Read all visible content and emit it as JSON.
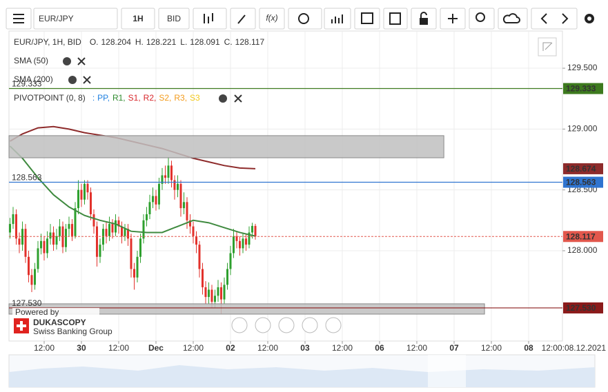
{
  "toolbar": {
    "symbol": "EUR/JPY",
    "period": "1H",
    "side": "BID",
    "fx": "f(x)"
  },
  "chart_data": {
    "type": "candlestick",
    "title": "EUR/JPY, 1H, BID",
    "ohlc_labels": [
      "O.",
      "H.",
      "L.",
      "C."
    ],
    "x": [
      1,
      2,
      3,
      4,
      5,
      6,
      7,
      8,
      9,
      10,
      11,
      12,
      13,
      14,
      15,
      16,
      17,
      18,
      19,
      20,
      21,
      22,
      23,
      24,
      25,
      26,
      27,
      28,
      29,
      30,
      31,
      32,
      33,
      34,
      35,
      36,
      37,
      38,
      39,
      40,
      41,
      42,
      43,
      44,
      45,
      46,
      47,
      48,
      49,
      50,
      51,
      52,
      53,
      54,
      55,
      56,
      57,
      58,
      59,
      60,
      61,
      62,
      63,
      64,
      65,
      66,
      67,
      68,
      69,
      70,
      71,
      72,
      73,
      74,
      75,
      76,
      77,
      78,
      79,
      80
    ],
    "open": [
      128.15,
      128.22,
      128.3,
      128.1,
      128.05,
      128.18,
      127.95,
      127.8,
      127.72,
      127.85,
      128.02,
      128.08,
      127.98,
      128.1,
      128.15,
      128.05,
      128.12,
      128.2,
      128.03,
      128.18,
      128.22,
      128.12,
      128.35,
      128.5,
      128.42,
      128.55,
      128.48,
      128.3,
      128.2,
      127.95,
      128.05,
      128.18,
      128.12,
      128.22,
      128.15,
      128.25,
      128.2,
      128.12,
      128.18,
      128.1,
      127.85,
      127.78,
      127.95,
      128.1,
      128.25,
      128.3,
      128.4,
      128.45,
      128.38,
      128.55,
      128.62,
      128.6,
      128.7,
      128.58,
      128.5,
      128.55,
      128.35,
      128.4,
      128.25,
      128.2,
      128.12,
      128.05,
      127.85,
      127.7,
      127.62,
      127.68,
      127.58,
      127.63,
      127.7,
      127.6,
      127.72,
      127.85,
      127.98,
      128.12,
      128.08,
      128.02,
      128.1,
      128.05,
      128.15,
      128.204
    ],
    "high": [
      128.27,
      128.36,
      128.34,
      128.15,
      128.24,
      128.22,
      128.0,
      127.85,
      127.9,
      128.08,
      128.14,
      128.12,
      128.16,
      128.22,
      128.2,
      128.18,
      128.26,
      128.24,
      128.22,
      128.28,
      128.26,
      128.4,
      128.58,
      128.55,
      128.58,
      128.58,
      128.52,
      128.34,
      128.24,
      128.1,
      128.22,
      128.24,
      128.28,
      128.26,
      128.3,
      128.28,
      128.24,
      128.22,
      128.22,
      128.14,
      127.9,
      128.0,
      128.14,
      128.3,
      128.36,
      128.46,
      128.52,
      128.5,
      128.6,
      128.68,
      128.7,
      128.77,
      128.74,
      128.62,
      128.62,
      128.58,
      128.48,
      128.44,
      128.3,
      128.24,
      128.16,
      128.08,
      127.9,
      127.75,
      127.74,
      127.72,
      127.68,
      127.76,
      127.74,
      127.78,
      127.9,
      128.04,
      128.18,
      128.16,
      128.12,
      128.15,
      128.14,
      128.2,
      128.23,
      128.221
    ],
    "low": [
      128.1,
      128.18,
      128.05,
      127.98,
      128.0,
      127.9,
      127.74,
      127.66,
      127.68,
      127.82,
      127.97,
      127.92,
      127.94,
      128.05,
      128.0,
      128.01,
      128.08,
      127.98,
      127.99,
      128.12,
      128.08,
      128.1,
      128.3,
      128.36,
      128.38,
      128.42,
      128.25,
      128.14,
      127.87,
      127.9,
      128.0,
      128.06,
      128.08,
      128.1,
      128.12,
      128.14,
      128.06,
      128.08,
      128.04,
      127.78,
      127.68,
      127.74,
      127.9,
      128.06,
      128.2,
      128.26,
      128.35,
      128.33,
      128.34,
      128.5,
      128.55,
      128.55,
      128.52,
      128.42,
      128.44,
      128.28,
      128.3,
      128.18,
      128.14,
      128.06,
      127.98,
      127.78,
      127.64,
      127.56,
      127.56,
      127.53,
      127.53,
      127.58,
      127.48,
      127.56,
      127.68,
      127.8,
      127.94,
      128.02,
      127.96,
      127.98,
      128.0,
      128.02,
      128.1,
      128.091
    ],
    "close": [
      128.22,
      128.3,
      128.1,
      128.05,
      128.18,
      127.95,
      127.8,
      127.72,
      127.85,
      128.02,
      128.08,
      127.98,
      128.1,
      128.15,
      128.05,
      128.12,
      128.2,
      128.03,
      128.18,
      128.22,
      128.12,
      128.35,
      128.5,
      128.42,
      128.55,
      128.48,
      128.3,
      128.2,
      127.95,
      128.05,
      128.18,
      128.12,
      128.22,
      128.15,
      128.25,
      128.2,
      128.12,
      128.18,
      128.1,
      127.85,
      127.78,
      127.95,
      128.1,
      128.25,
      128.3,
      128.4,
      128.45,
      128.38,
      128.55,
      128.62,
      128.6,
      128.7,
      128.58,
      128.5,
      128.55,
      128.35,
      128.4,
      128.25,
      128.2,
      128.12,
      128.05,
      127.85,
      127.7,
      127.62,
      127.68,
      127.58,
      127.63,
      127.7,
      127.6,
      127.72,
      127.85,
      127.98,
      128.12,
      128.08,
      128.02,
      128.1,
      128.05,
      128.15,
      128.204,
      128.117
    ],
    "up_color": "#2ea02e",
    "down_color": "#e2312b",
    "current_color": "#e2574c",
    "series": [
      {
        "name": "SMA (50)",
        "color": "#3f8a3f",
        "x": [
          1,
          5,
          10,
          15,
          20,
          25,
          30,
          35,
          40,
          45,
          50,
          55,
          60,
          65,
          70,
          75,
          80
        ],
        "values": [
          128.86,
          128.76,
          128.6,
          128.46,
          128.36,
          128.29,
          128.25,
          128.22,
          128.16,
          128.15,
          128.15,
          128.2,
          128.25,
          128.23,
          128.19,
          128.15,
          128.12
        ]
      },
      {
        "name": "SMA (200)",
        "color": "#8e2b2b",
        "x": [
          1,
          5,
          10,
          15,
          20,
          25,
          30,
          35,
          40,
          45,
          50,
          55,
          60,
          65,
          70,
          75,
          80
        ],
        "values": [
          128.9,
          128.96,
          129.01,
          129.02,
          129.0,
          128.97,
          128.95,
          128.93,
          128.9,
          128.87,
          128.84,
          128.8,
          128.76,
          128.73,
          128.7,
          128.68,
          128.674
        ]
      }
    ],
    "pivot": {
      "name": "PIVOTPOINT (0, 8)",
      "prefix": ":",
      "items": [
        {
          "name": "PP,",
          "color": "#1e7fe0"
        },
        {
          "name": "R1,",
          "color": "#2e8b2e"
        },
        {
          "name": "S1,",
          "color": "#d8262b"
        },
        {
          "name": "R2,",
          "color": "#d8262b"
        },
        {
          "name": "S2,",
          "color": "#f39a1a"
        },
        {
          "name": "R3,",
          "color": "#f39a1a"
        },
        {
          "name": "S3",
          "color": "#f2c81a"
        }
      ]
    },
    "levels": [
      {
        "value": 129.333,
        "color": "#3d7a1e"
      },
      {
        "value": 128.563,
        "color": "#2f74d0"
      },
      {
        "value": 127.53,
        "label": "127.530",
        "color": "#8b1a1a"
      }
    ],
    "zones": [
      {
        "xlim": [
          0.67,
          140.7
        ],
        "ylim": [
          128.764,
          128.946
        ]
      },
      {
        "xlim": [
          0.67,
          153.8
        ],
        "ylim": [
          127.479,
          127.564
        ]
      }
    ],
    "xlim": [
      0.67,
      178.89
    ],
    "ylim": [
      127.258,
      129.806
    ],
    "yticks": [
      {
        "value": 128,
        "label": "128.000"
      },
      {
        "value": 128.5,
        "label": "128.500"
      },
      {
        "value": 129,
        "label": "129.000"
      },
      {
        "value": 129.5,
        "label": "129.500"
      }
    ],
    "xticks": [
      {
        "value": 12,
        "label": "12:00"
      },
      {
        "value": 24,
        "label": "30"
      },
      {
        "value": 36,
        "label": "12:00"
      },
      {
        "value": 48,
        "label": "Dec"
      },
      {
        "value": 60,
        "label": "12:00"
      },
      {
        "value": 72,
        "label": "02"
      },
      {
        "value": 84,
        "label": "12:00"
      },
      {
        "value": 96,
        "label": "03"
      },
      {
        "value": 108,
        "label": "12:00"
      },
      {
        "value": 120,
        "label": "06"
      },
      {
        "value": 132,
        "label": "12:00"
      },
      {
        "value": 144,
        "label": "07"
      },
      {
        "value": 156,
        "label": "12:00"
      },
      {
        "value": 168,
        "label": "08"
      }
    ],
    "x_end_label": "12:00:08.12.2021",
    "grid": true
  },
  "branding": {
    "powered_by": "Powered by",
    "name": "DUKASCOPY",
    "tagline": "Swiss Banking Group"
  }
}
